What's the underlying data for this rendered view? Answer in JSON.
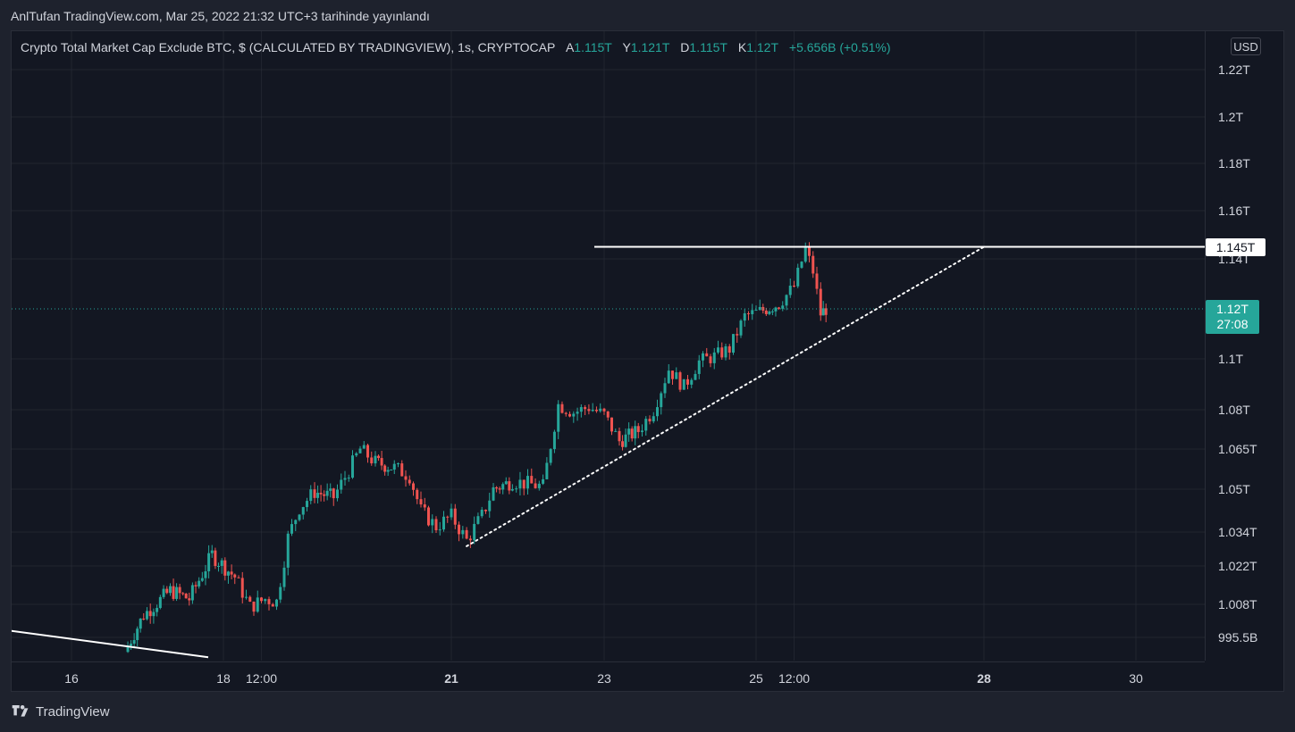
{
  "header": {
    "publish_text": "AnlTufan TradingView.com, Mar 25, 2022 21:32 UTC+3 tarihinde yayınlandı"
  },
  "legend": {
    "symbol": "Crypto Total Market Cap Exclude BTC, $ (CALCULATED BY TRADINGVIEW), 1s, CRYPTOCAP",
    "open_label": "A",
    "open_value": "1.115T",
    "high_label": "Y",
    "high_value": "1.121T",
    "low_label": "D",
    "low_value": "1.115T",
    "close_label": "K",
    "close_value": "1.12T",
    "change": "+5.656B (+0.51%)"
  },
  "currency": "USD",
  "price_labels": {
    "level": "1.145T",
    "current_price": "1.12T",
    "countdown": "27:08"
  },
  "footer": {
    "brand": "TradingView"
  },
  "colors": {
    "up": "#26a69a",
    "down": "#ef5350",
    "background": "#131722",
    "grid": "#2a2e39"
  },
  "chart_data": {
    "type": "candlestick",
    "title": "Crypto Total Market Cap Exclude BTC, $ (CALCULATED BY TRADINGVIEW), 1s, CRYPTOCAP",
    "y_ticks": [
      {
        "label": "1.22T",
        "value": 1.22
      },
      {
        "label": "1.2T",
        "value": 1.2
      },
      {
        "label": "1.18T",
        "value": 1.18
      },
      {
        "label": "1.16T",
        "value": 1.16
      },
      {
        "label": "1.14T",
        "value": 1.14
      },
      {
        "label": "1.1T",
        "value": 1.1
      },
      {
        "label": "1.08T",
        "value": 1.08
      },
      {
        "label": "1.065T",
        "value": 1.065
      },
      {
        "label": "1.05T",
        "value": 1.05
      },
      {
        "label": "1.034T",
        "value": 1.034
      },
      {
        "label": "1.022T",
        "value": 1.022
      },
      {
        "label": "1.008T",
        "value": 1.008
      },
      {
        "label": "995.5B",
        "value": 0.9955
      }
    ],
    "x_ticks": [
      {
        "label": "16",
        "t": 16,
        "bold": false
      },
      {
        "label": "18",
        "t": 18,
        "bold": false
      },
      {
        "label": "12:00",
        "t": 18.5,
        "bold": false
      },
      {
        "label": "21",
        "t": 21,
        "bold": true
      },
      {
        "label": "23",
        "t": 23,
        "bold": false
      },
      {
        "label": "25",
        "t": 25,
        "bold": false
      },
      {
        "label": "12:00",
        "t": 25.5,
        "bold": false
      },
      {
        "label": "28",
        "t": 28,
        "bold": true
      },
      {
        "label": "30",
        "t": 30,
        "bold": false
      }
    ],
    "resistance_level": 1.145,
    "current_price": 1.12,
    "trendlines": [
      {
        "style": "solid",
        "color": "#ffffff",
        "from": [
          15.2,
          0.998
        ],
        "to": [
          17.8,
          0.988
        ]
      },
      {
        "style": "dotted",
        "color": "#ffffff",
        "from": [
          21.2,
          1.029
        ],
        "to": [
          28.0,
          1.145
        ]
      }
    ],
    "path": [
      [
        16.7,
        0.99
      ],
      [
        16.95,
        1.004
      ],
      [
        17.3,
        1.013
      ],
      [
        17.55,
        1.01
      ],
      [
        17.85,
        1.026
      ],
      [
        18.15,
        1.018
      ],
      [
        18.35,
        1.007
      ],
      [
        18.55,
        1.01
      ],
      [
        18.7,
        1.009
      ],
      [
        18.85,
        1.032
      ],
      [
        19.0,
        1.043
      ],
      [
        19.2,
        1.049
      ],
      [
        19.45,
        1.047
      ],
      [
        19.65,
        1.057
      ],
      [
        19.8,
        1.065
      ],
      [
        20.0,
        1.06
      ],
      [
        20.25,
        1.058
      ],
      [
        20.45,
        1.055
      ],
      [
        20.6,
        1.042
      ],
      [
        20.8,
        1.036
      ],
      [
        21.0,
        1.04
      ],
      [
        21.2,
        1.031
      ],
      [
        21.4,
        1.04
      ],
      [
        21.55,
        1.05
      ],
      [
        21.8,
        1.053
      ],
      [
        22.0,
        1.052
      ],
      [
        22.2,
        1.051
      ],
      [
        22.4,
        1.082
      ],
      [
        22.6,
        1.079
      ],
      [
        22.8,
        1.081
      ],
      [
        23.0,
        1.078
      ],
      [
        23.2,
        1.068
      ],
      [
        23.45,
        1.072
      ],
      [
        23.65,
        1.08
      ],
      [
        23.85,
        1.096
      ],
      [
        24.05,
        1.089
      ],
      [
        24.25,
        1.099
      ],
      [
        24.45,
        1.101
      ],
      [
        24.65,
        1.104
      ],
      [
        24.85,
        1.117
      ],
      [
        25.05,
        1.119
      ],
      [
        25.3,
        1.122
      ],
      [
        25.5,
        1.129
      ],
      [
        25.65,
        1.144
      ],
      [
        25.75,
        1.135
      ],
      [
        25.85,
        1.118
      ],
      [
        25.92,
        1.12
      ]
    ]
  }
}
